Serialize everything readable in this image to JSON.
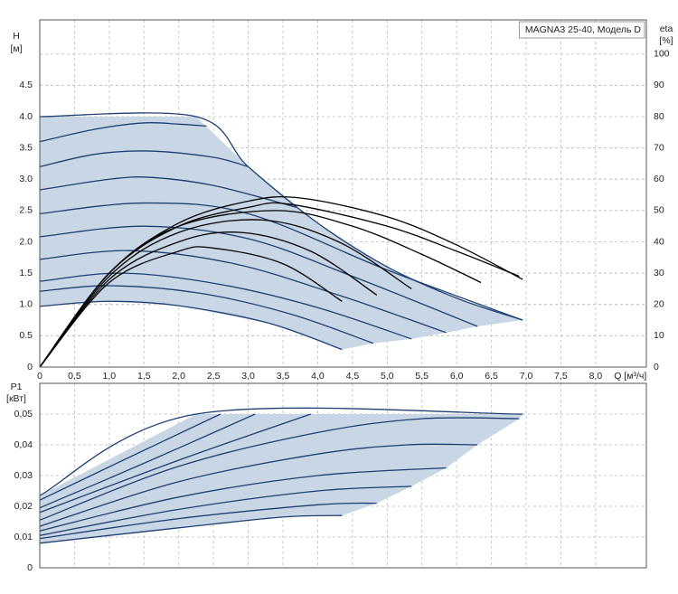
{
  "chart_data": [
    {
      "type": "line",
      "title": "MAGNA3 25-40, Модель D",
      "ylabel": "H",
      "yunit": "[м]",
      "y2label": "eta",
      "y2unit": "[%]",
      "xlabel": "Q [м³/ч]",
      "xlim": [
        0,
        8.73
      ],
      "ylim": [
        0,
        5.545
      ],
      "y2lim": [
        0,
        110.9
      ],
      "xticks": [
        0,
        {
          "value": 0.5,
          "label": "0,5"
        },
        {
          "value": 1,
          "label": "1,0"
        },
        {
          "value": 1.5,
          "label": "1,5"
        },
        {
          "value": 2,
          "label": "2,0"
        },
        {
          "value": 2.5,
          "label": "2,5"
        },
        {
          "value": 3,
          "label": "3,0"
        },
        {
          "value": 3.5,
          "label": "3,5"
        },
        {
          "value": 4,
          "label": "4,0"
        },
        {
          "value": 4.5,
          "label": "4,5"
        },
        {
          "value": 5,
          "label": "5,0"
        },
        {
          "value": 5.5,
          "label": "5,5"
        },
        {
          "value": 6,
          "label": "6,0"
        },
        {
          "value": 6.5,
          "label": "6,5"
        },
        {
          "value": 7,
          "label": "7,0"
        },
        {
          "value": 7.5,
          "label": "7,5"
        },
        {
          "value": 8,
          "label": "8,0"
        }
      ],
      "yticks": [
        0,
        0.5,
        {
          "value": 1,
          "label": "1.0"
        },
        1.5,
        {
          "value": 2,
          "label": "2.0"
        },
        2.5,
        {
          "value": 3,
          "label": "3.0"
        },
        3.5,
        {
          "value": 4,
          "label": "4.0"
        },
        4.5
      ],
      "y2ticks": [
        0,
        10,
        20,
        30,
        40,
        50,
        60,
        70,
        80,
        90,
        100
      ],
      "grid": true,
      "series": [
        {
          "type": "area",
          "color": "#c9d6e5",
          "x": [
            0,
            2.25,
            3.0,
            4.0,
            5.0,
            6.0,
            6.95,
            6.3,
            5.85,
            5.35,
            4.8,
            4.35,
            3.3,
            2,
            1,
            0
          ],
          "values": [
            4.0,
            4.0,
            3.2,
            2.3,
            1.6,
            1.1,
            0.75,
            0.65,
            0.55,
            0.45,
            0.38,
            0.28,
            0.7,
            0.98,
            1.05,
            0.97
          ]
        },
        {
          "color": "#1d3f73",
          "x": [
            0,
            2.25,
            3.0,
            4.0,
            5.0,
            6.0,
            6.95
          ],
          "values": [
            4.0,
            4.0,
            3.2,
            2.3,
            1.6,
            1.1,
            0.75
          ]
        },
        {
          "color": "#1d3f73",
          "x": [
            0,
            0.8,
            1.5,
            2.0,
            2.4
          ],
          "values": [
            3.6,
            3.8,
            3.9,
            3.88,
            3.85
          ]
        },
        {
          "color": "#1d3f73",
          "x": [
            0,
            0.8,
            1.6,
            2.5,
            3.0
          ],
          "values": [
            3.2,
            3.4,
            3.45,
            3.35,
            3.2
          ]
        },
        {
          "color": "#1d3f73",
          "x": [
            0,
            1,
            1.6,
            2.5,
            3.7
          ],
          "values": [
            2.83,
            3.0,
            3.03,
            2.9,
            2.55
          ]
        },
        {
          "color": "#1d3f73",
          "x": [
            0,
            1.5,
            3,
            5,
            6.95
          ],
          "values": [
            2.45,
            2.62,
            2.45,
            1.55,
            0.75
          ]
        },
        {
          "color": "#1d3f73",
          "x": [
            0,
            1.5,
            3,
            4.5,
            6.3
          ],
          "values": [
            2.08,
            2.25,
            2.05,
            1.45,
            0.65
          ]
        },
        {
          "color": "#1d3f73",
          "x": [
            0,
            1.3,
            2.8,
            4.3,
            5.85
          ],
          "values": [
            1.72,
            1.86,
            1.65,
            1.15,
            0.55
          ]
        },
        {
          "color": "#1d3f73",
          "x": [
            0,
            1.2,
            2.6,
            4,
            5.35
          ],
          "values": [
            1.37,
            1.5,
            1.32,
            0.95,
            0.45
          ]
        },
        {
          "color": "#1d3f73",
          "x": [
            0,
            1,
            2.3,
            3.6,
            4.8
          ],
          "values": [
            1.21,
            1.3,
            1.18,
            0.85,
            0.38
          ]
        },
        {
          "color": "#1d3f73",
          "x": [
            0,
            1,
            2,
            3.3,
            4.35
          ],
          "values": [
            0.97,
            1.05,
            0.98,
            0.7,
            0.28
          ]
        },
        {
          "color": "#000000",
          "axis": "y2",
          "x": [
            0,
            1,
            2,
            3,
            3.75,
            5,
            6,
            6.95
          ],
          "values": [
            0,
            30,
            46,
            53,
            54,
            48,
            39,
            28
          ]
        },
        {
          "color": "#000000",
          "axis": "y2",
          "x": [
            0,
            1,
            2,
            3,
            3.6,
            5,
            6,
            6.9
          ],
          "values": [
            0,
            30,
            45,
            51,
            52,
            45,
            37,
            29
          ]
        },
        {
          "color": "#000000",
          "axis": "y2",
          "x": [
            0,
            1,
            2,
            3.4,
            4.5,
            5.5,
            6.35
          ],
          "values": [
            0,
            30,
            45,
            50,
            45,
            36,
            27
          ]
        },
        {
          "color": "#000000",
          "axis": "y2",
          "x": [
            0,
            1,
            2,
            3.2,
            4.3,
            5.35
          ],
          "values": [
            0,
            29,
            43,
            47,
            40,
            25
          ]
        },
        {
          "color": "#000000",
          "axis": "y2",
          "x": [
            0,
            1,
            2,
            2.9,
            3.9,
            4.85
          ],
          "values": [
            0,
            28,
            40,
            43,
            37,
            23
          ]
        },
        {
          "color": "#000000",
          "axis": "y2",
          "x": [
            0,
            1,
            2,
            2.5,
            3.5,
            4.35
          ],
          "values": [
            0,
            27,
            37,
            38,
            33,
            21
          ]
        }
      ]
    },
    {
      "type": "line",
      "ylabel": "P1",
      "yunit": "[кВт]",
      "xlim": [
        0,
        8.73
      ],
      "ylim": [
        0,
        0.06
      ],
      "xticks": [
        0,
        0.5,
        1,
        1.5,
        2,
        2.5,
        3,
        3.5,
        4,
        4.5,
        5,
        5.5,
        6,
        6.5,
        7,
        7.5,
        8
      ],
      "xtick_labels": false,
      "yticks": [
        0,
        {
          "value": 0.01,
          "label": "0,01"
        },
        {
          "value": 0.02,
          "label": "0,02"
        },
        {
          "value": 0.03,
          "label": "0,03"
        },
        {
          "value": 0.04,
          "label": "0,04"
        },
        {
          "value": 0.05,
          "label": "0,05"
        }
      ],
      "grid": true,
      "series": [
        {
          "type": "area",
          "color": "#c9d6e5",
          "x": [
            0,
            2.25,
            6.95,
            6.9,
            6.3,
            5.85,
            5.35,
            4.85,
            4.35,
            3.5,
            2,
            0
          ],
          "values": [
            0.0235,
            0.05,
            0.05,
            0.0485,
            0.04,
            0.0325,
            0.0265,
            0.021,
            0.017,
            0.0165,
            0.013,
            0.008
          ]
        },
        {
          "color": "#1d3f73",
          "x": [
            0,
            2.25,
            6.95
          ],
          "values": [
            0.0235,
            0.05,
            0.05
          ]
        },
        {
          "color": "#1d3f73",
          "x": [
            0,
            1.2,
            2.6
          ],
          "values": [
            0.022,
            0.035,
            0.05
          ]
        },
        {
          "color": "#1d3f73",
          "x": [
            0,
            1.5,
            3.1
          ],
          "values": [
            0.0195,
            0.034,
            0.05
          ]
        },
        {
          "color": "#1d3f73",
          "x": [
            0,
            2,
            3.9
          ],
          "values": [
            0.018,
            0.035,
            0.05
          ]
        },
        {
          "color": "#1d3f73",
          "x": [
            0,
            2,
            4,
            5.5,
            6.9
          ],
          "values": [
            0.0155,
            0.033,
            0.044,
            0.0485,
            0.0485
          ]
        },
        {
          "color": "#1d3f73",
          "x": [
            0,
            2,
            4,
            5.3,
            6.3
          ],
          "values": [
            0.0135,
            0.028,
            0.037,
            0.04,
            0.04
          ]
        },
        {
          "color": "#1d3f73",
          "x": [
            0,
            2,
            4,
            5.85
          ],
          "values": [
            0.012,
            0.023,
            0.03,
            0.0325
          ]
        },
        {
          "color": "#1d3f73",
          "x": [
            0,
            2,
            4,
            5.35
          ],
          "values": [
            0.0105,
            0.019,
            0.025,
            0.0265
          ]
        },
        {
          "color": "#1d3f73",
          "x": [
            0,
            2,
            4,
            4.85
          ],
          "values": [
            0.0095,
            0.016,
            0.0205,
            0.021
          ]
        },
        {
          "color": "#1d3f73",
          "x": [
            0,
            2,
            3.5,
            4.35
          ],
          "values": [
            0.008,
            0.013,
            0.0165,
            0.017
          ]
        }
      ]
    }
  ]
}
